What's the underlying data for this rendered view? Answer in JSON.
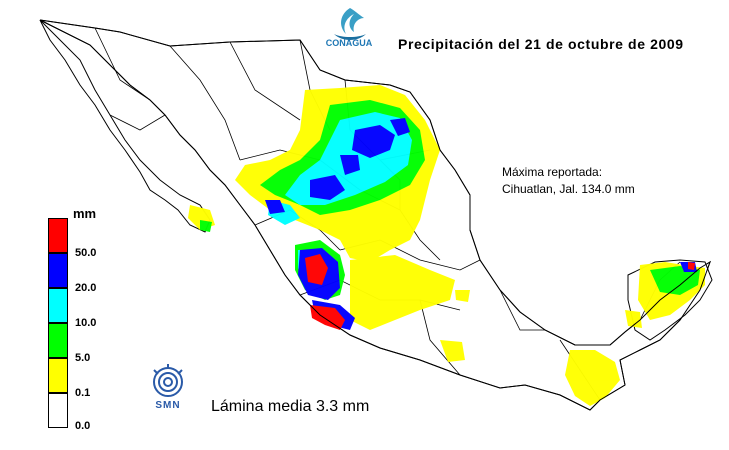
{
  "title": "Precipitación del 21 de octubre de 2009",
  "max_reported": {
    "line1": "Máxima reportada:",
    "line2": "Cihuatlan, Jal. 134.0 mm"
  },
  "summary": "Lámina media 3.3 mm",
  "legend": {
    "unit": "mm",
    "classes": [
      {
        "label": "50.0",
        "color": "#ff0000"
      },
      {
        "label": "20.0",
        "color": "#0000ff"
      },
      {
        "label": "10.0",
        "color": "#00ffff"
      },
      {
        "label": "5.0",
        "color": "#00ff00"
      },
      {
        "label": "0.1",
        "color": "#ffff00"
      },
      {
        "label": "0.0",
        "color": "#ffffff"
      }
    ]
  },
  "logos": {
    "conagua": "CONAGUA",
    "smn": "SMN"
  }
}
